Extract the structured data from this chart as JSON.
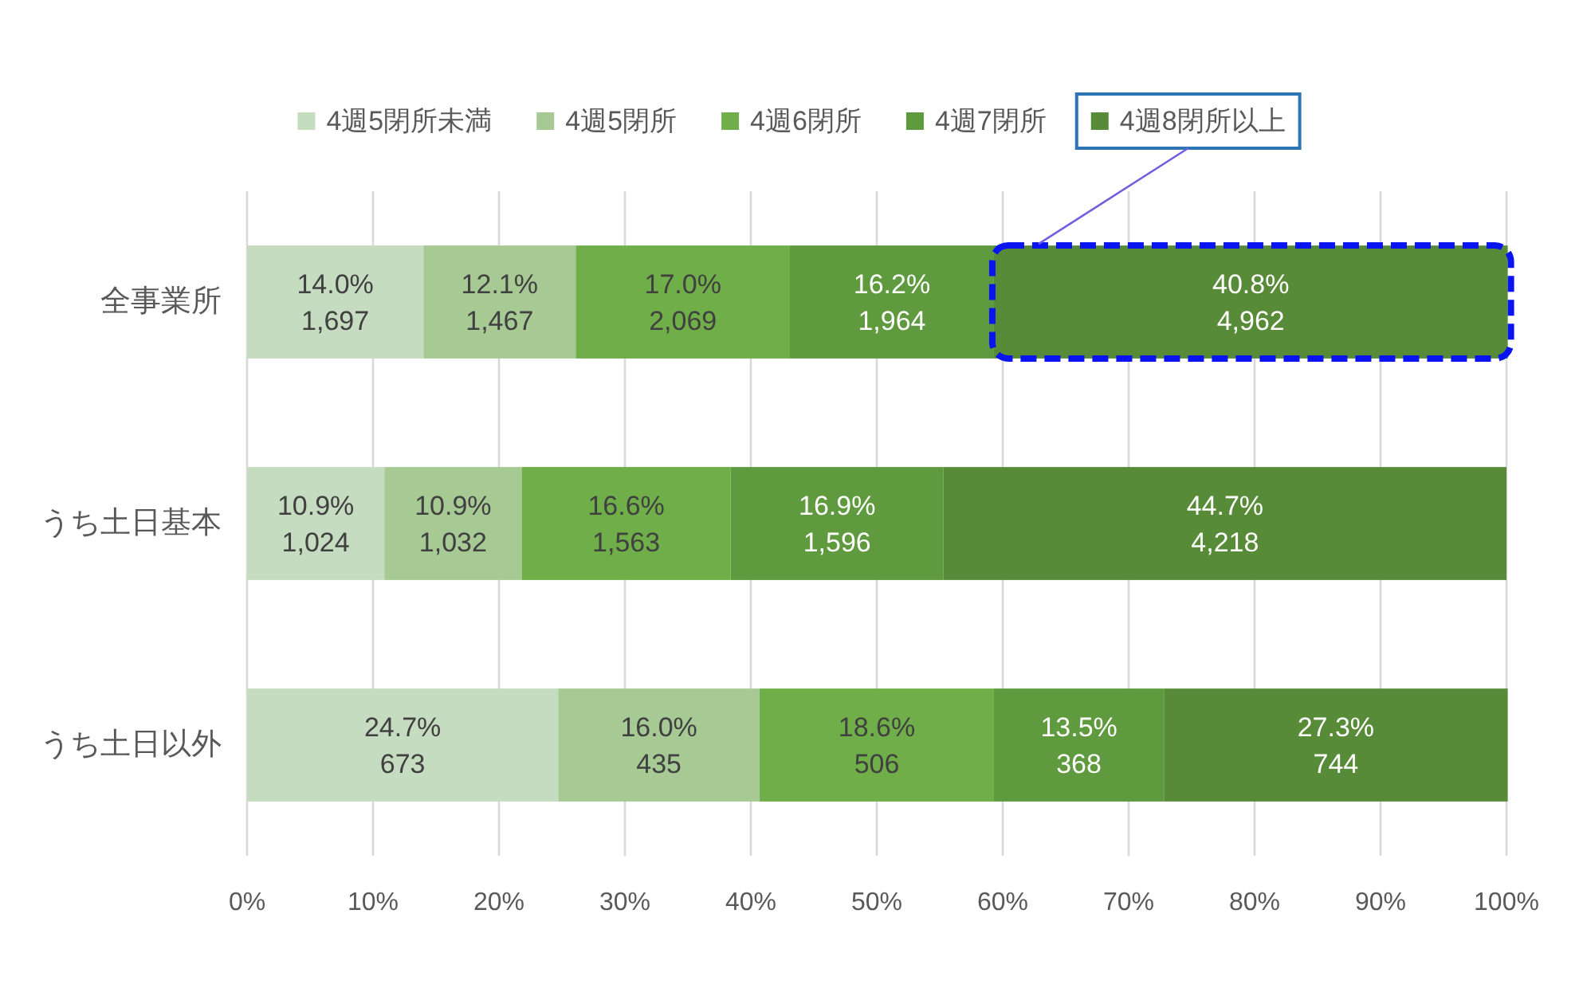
{
  "chart_data": {
    "type": "bar",
    "orientation": "horizontal",
    "stacked": true,
    "categories": [
      "全事業所",
      "うち土日基本",
      "うち土日以外"
    ],
    "series": [
      {
        "name": "4週5閉所未満",
        "color": "#c6dcc0",
        "values": [
          14.0,
          10.9,
          24.7
        ],
        "value_labels": [
          "14.0%\n1,697",
          "10.9%\n1,024",
          "24.7%\n673"
        ]
      },
      {
        "name": "4週5閉所",
        "color": "#a7c994",
        "values": [
          12.1,
          10.9,
          16.0
        ],
        "value_labels": [
          "12.1%\n1,467",
          "10.9%\n1,032",
          "16.0%\n435"
        ]
      },
      {
        "name": "4週6閉所",
        "color": "#6fae48",
        "values": [
          17.0,
          16.6,
          18.6
        ],
        "value_labels": [
          "17.0%\n2,069",
          "16.6%\n1,563",
          "18.6%\n506"
        ]
      },
      {
        "name": "4週7閉所",
        "color": "#5f9a3e",
        "values": [
          16.2,
          16.9,
          13.5
        ],
        "value_labels": [
          "16.2%\n1,964",
          "16.9%\n1,596",
          "13.5%\n368"
        ]
      },
      {
        "name": "4週8閉所以上",
        "color": "#578b38",
        "values": [
          40.8,
          44.7,
          27.3
        ],
        "value_labels": [
          "40.8%\n4,962",
          "44.7%\n4,218",
          "27.3%\n744"
        ]
      }
    ],
    "xlim": [
      0,
      100
    ],
    "xticks": [
      {
        "value": 0,
        "label": "0%"
      },
      {
        "value": 10,
        "label": "10%"
      },
      {
        "value": 20,
        "label": "20%"
      },
      {
        "value": 30,
        "label": "30%"
      },
      {
        "value": 40,
        "label": "40%"
      },
      {
        "value": 50,
        "label": "50%"
      },
      {
        "value": 60,
        "label": "60%"
      },
      {
        "value": 70,
        "label": "70%"
      },
      {
        "value": 80,
        "label": "80%"
      },
      {
        "value": 90,
        "label": "90%"
      },
      {
        "value": 100,
        "label": "100%"
      }
    ],
    "grid": "x",
    "legend": "top"
  }
}
